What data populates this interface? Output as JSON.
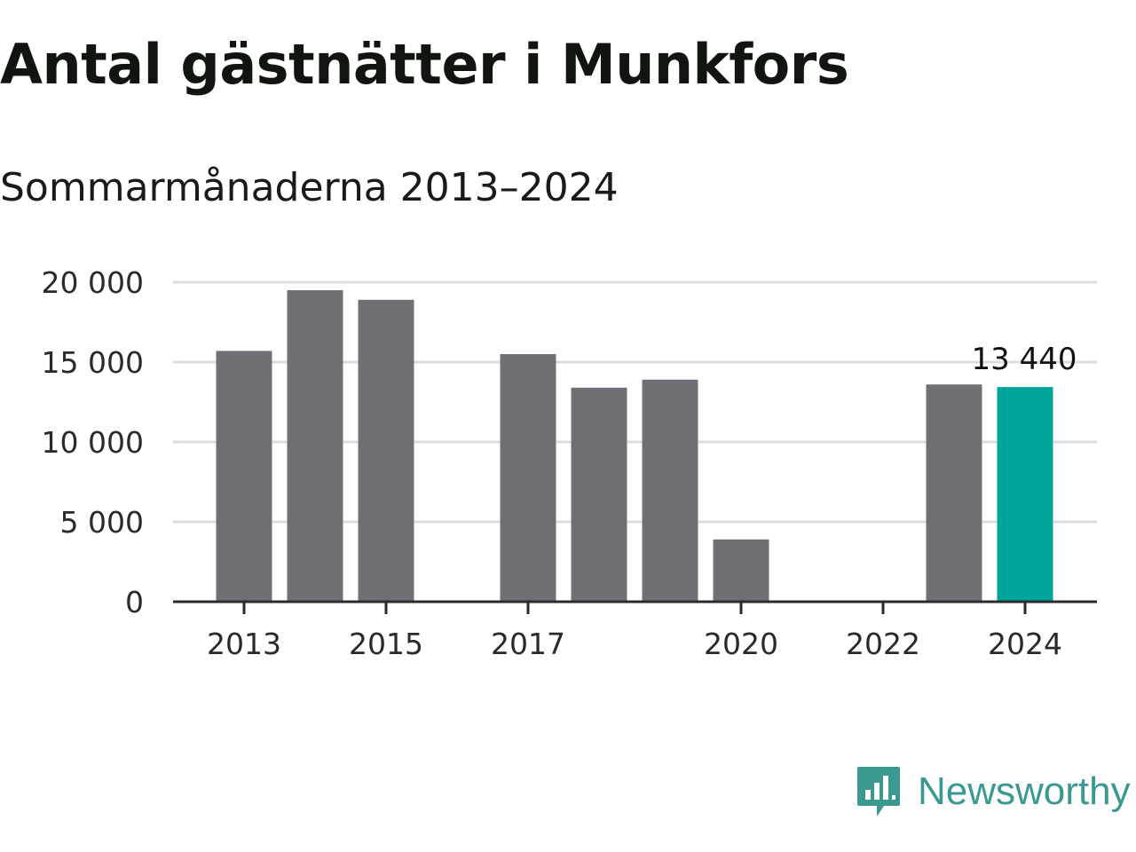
{
  "title": "Antal gästnätter i Munkfors",
  "subtitle": "Sommarmånaderna 2013–2024",
  "logo": {
    "text": "Newsworthy",
    "icon": "newsworthy-bar-chart-icon",
    "color": "#3a9a92"
  },
  "chart_data": {
    "type": "bar",
    "categories": [
      "2013",
      "2014",
      "2015",
      "2016",
      "2017",
      "2018",
      "2019",
      "2020",
      "2021",
      "2022",
      "2023",
      "2024"
    ],
    "values": [
      15700,
      19500,
      18900,
      null,
      15500,
      13400,
      13900,
      3900,
      null,
      null,
      13600,
      13440
    ],
    "x_tick_labels": [
      "2013",
      "2015",
      "2017",
      "2020",
      "2022",
      "2024"
    ],
    "y_tick_labels": [
      "0",
      "5 000",
      "10 000",
      "15 000",
      "20 000"
    ],
    "y_ticks": [
      0,
      5000,
      10000,
      15000,
      20000
    ],
    "ylim": [
      0,
      20000
    ],
    "highlight_category": "2024",
    "data_labels": [
      {
        "category": "2024",
        "text": "13 440"
      }
    ],
    "bar_color": "#706f75",
    "highlight_color": "#00a59a",
    "grid": true,
    "xlabel": "",
    "ylabel": ""
  }
}
